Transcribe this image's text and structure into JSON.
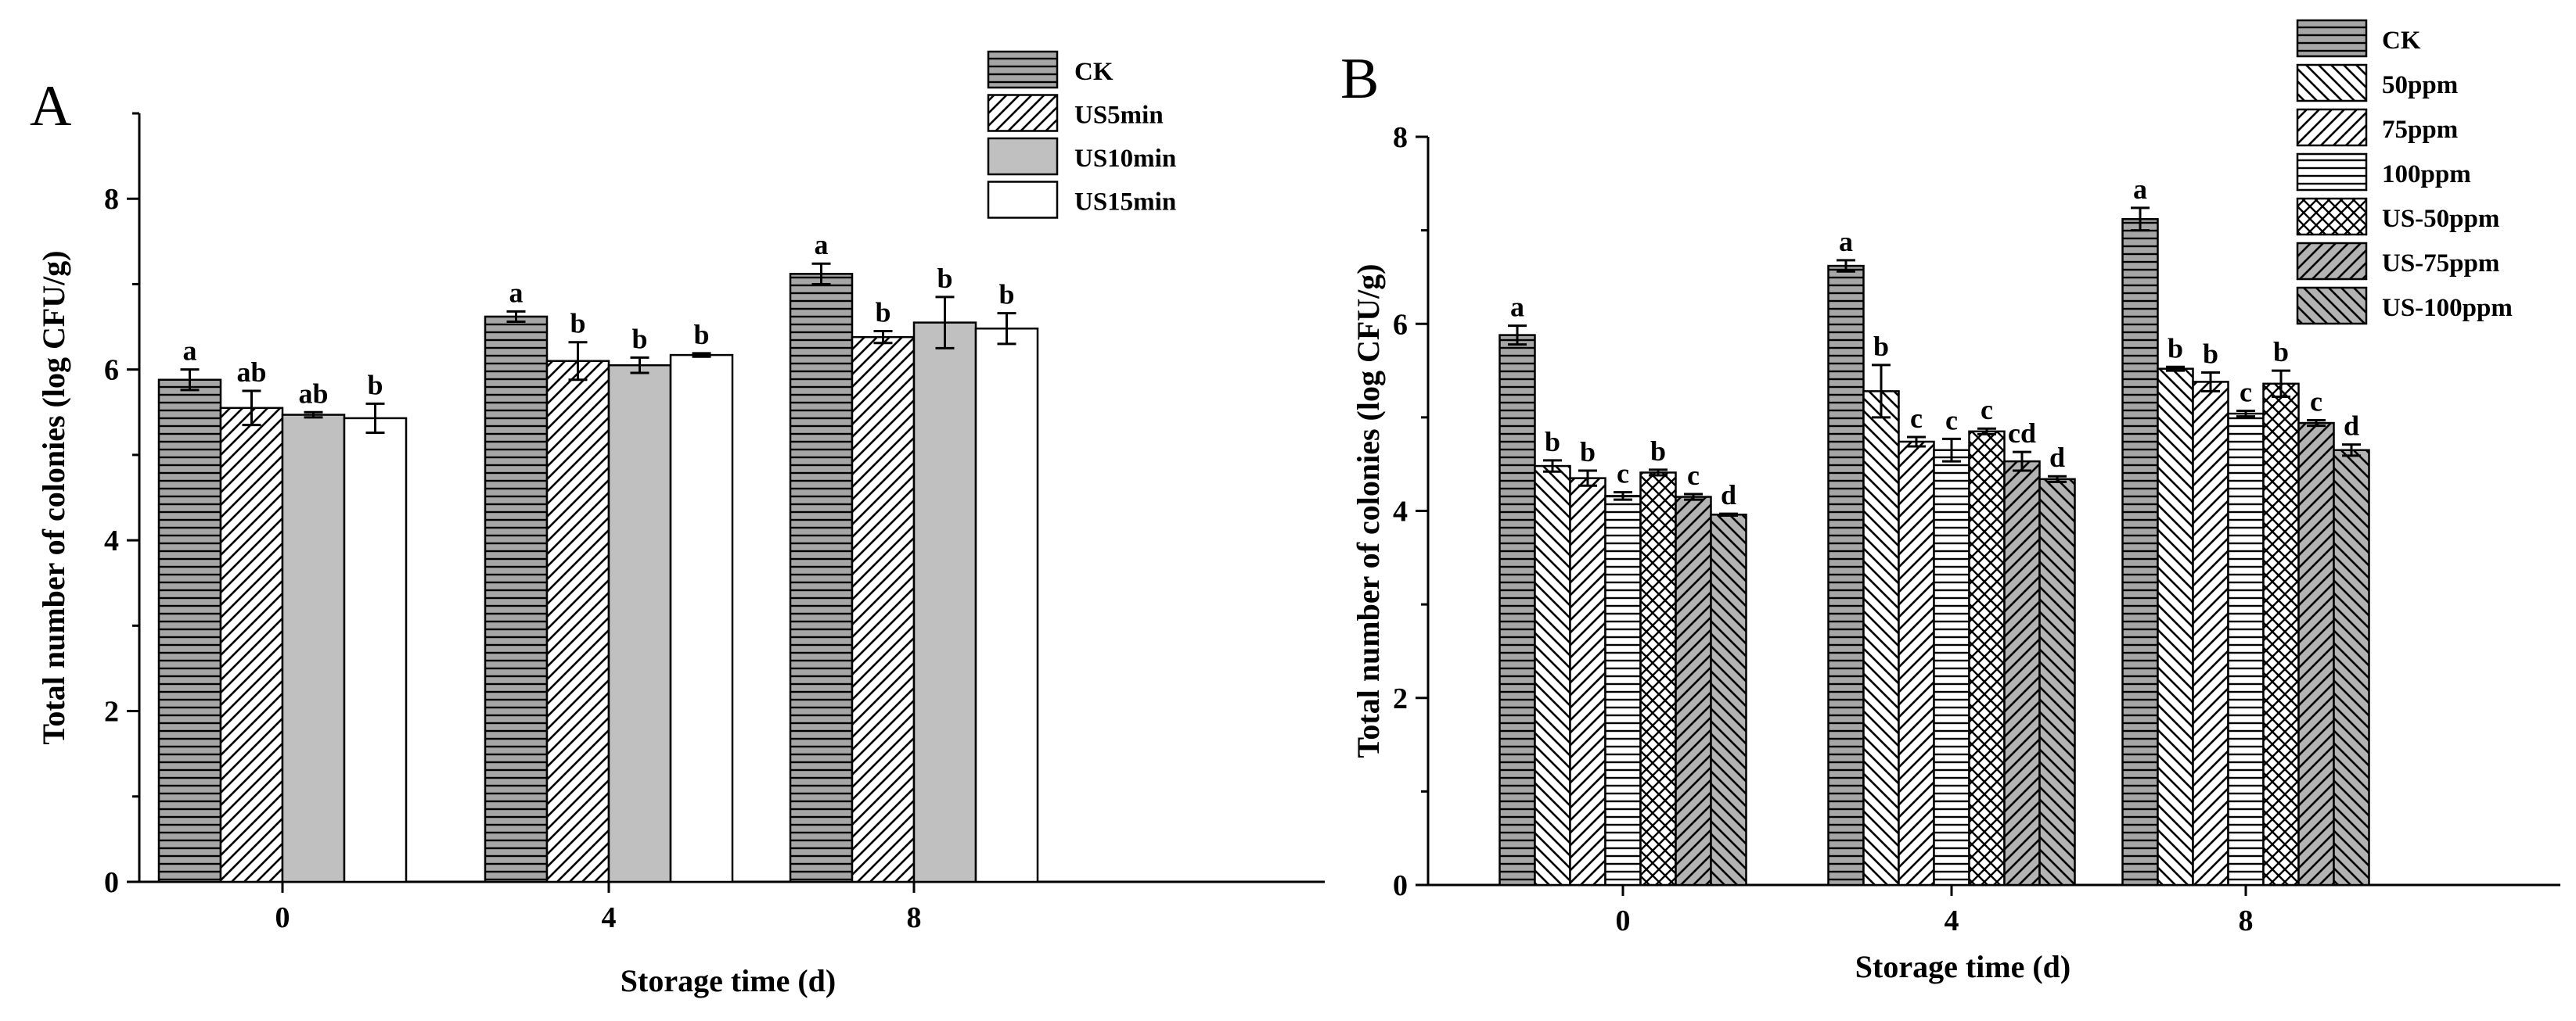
{
  "chart_data": [
    {
      "type": "bar",
      "panel_label": "A",
      "xlabel": "Storage time (d)",
      "ylabel": "Total number of colonies (log CFU/g)",
      "categories": [
        "0",
        "4",
        "8"
      ],
      "ylim": [
        0,
        9
      ],
      "yticks": [
        "0",
        "2",
        "4",
        "6",
        "8"
      ],
      "legend_position": "top-right",
      "series": [
        {
          "name": "CK",
          "pattern": "hlines",
          "fill": "#a6a6a6",
          "values": [
            5.88,
            6.62,
            7.12
          ],
          "errors": [
            0.12,
            0.06,
            0.12
          ],
          "labels": [
            "a",
            "a",
            "a"
          ]
        },
        {
          "name": "US5min",
          "pattern": "diag-up",
          "fill": "#ffffff",
          "values": [
            5.55,
            6.1,
            6.38
          ],
          "errors": [
            0.2,
            0.22,
            0.07
          ],
          "labels": [
            "ab",
            "b",
            "b"
          ]
        },
        {
          "name": "US10min",
          "pattern": "solid",
          "fill": "#c0c0c0",
          "values": [
            5.47,
            6.05,
            6.55
          ],
          "errors": [
            0.03,
            0.09,
            0.3
          ],
          "labels": [
            "ab",
            "b",
            "b"
          ]
        },
        {
          "name": "US15min",
          "pattern": "none",
          "fill": "#ffffff",
          "values": [
            5.43,
            6.17,
            6.48
          ],
          "errors": [
            0.17,
            0.02,
            0.18
          ],
          "labels": [
            "b",
            "b",
            "b"
          ]
        }
      ]
    },
    {
      "type": "bar",
      "panel_label": "B",
      "xlabel": "Storage time (d)",
      "ylabel": "Total number of colonies (log CFU/g)",
      "categories": [
        "0",
        "4",
        "8"
      ],
      "ylim": [
        0,
        8
      ],
      "yticks": [
        "0",
        "2",
        "4",
        "6",
        "8"
      ],
      "legend_position": "top-right",
      "series": [
        {
          "name": "CK",
          "pattern": "hlines",
          "fill": "#a6a6a6",
          "values": [
            5.88,
            6.62,
            7.12
          ],
          "errors": [
            0.1,
            0.06,
            0.12
          ],
          "labels": [
            "a",
            "a",
            "a"
          ]
        },
        {
          "name": "50ppm",
          "pattern": "diag-down",
          "fill": "#ffffff",
          "values": [
            4.48,
            5.28,
            5.52
          ],
          "errors": [
            0.06,
            0.28,
            0.02
          ],
          "labels": [
            "b",
            "b",
            "b"
          ]
        },
        {
          "name": "75ppm",
          "pattern": "diag-up",
          "fill": "#ffffff",
          "values": [
            4.35,
            4.74,
            5.38
          ],
          "errors": [
            0.08,
            0.05,
            0.1
          ],
          "labels": [
            "b",
            "c",
            "b"
          ]
        },
        {
          "name": "100ppm",
          "pattern": "hlines",
          "fill": "#ffffff",
          "values": [
            4.16,
            4.65,
            5.04
          ],
          "errors": [
            0.04,
            0.12,
            0.03
          ],
          "labels": [
            "c",
            "c",
            "c"
          ]
        },
        {
          "name": "US-50ppm",
          "pattern": "cross",
          "fill": "#ffffff",
          "values": [
            4.41,
            4.85,
            5.36
          ],
          "errors": [
            0.03,
            0.03,
            0.14
          ],
          "labels": [
            "b",
            "c",
            "b"
          ]
        },
        {
          "name": "US-75ppm",
          "pattern": "diag-up",
          "fill": "#b3b3b3",
          "values": [
            4.15,
            4.53,
            4.94
          ],
          "errors": [
            0.03,
            0.1,
            0.03
          ],
          "labels": [
            "c",
            "cd",
            "c"
          ]
        },
        {
          "name": "US-100ppm",
          "pattern": "diag-down",
          "fill": "#b3b3b3",
          "values": [
            3.96,
            4.34,
            4.65
          ],
          "errors": [
            0.01,
            0.03,
            0.06
          ],
          "labels": [
            "d",
            "d",
            "d"
          ]
        }
      ]
    }
  ]
}
